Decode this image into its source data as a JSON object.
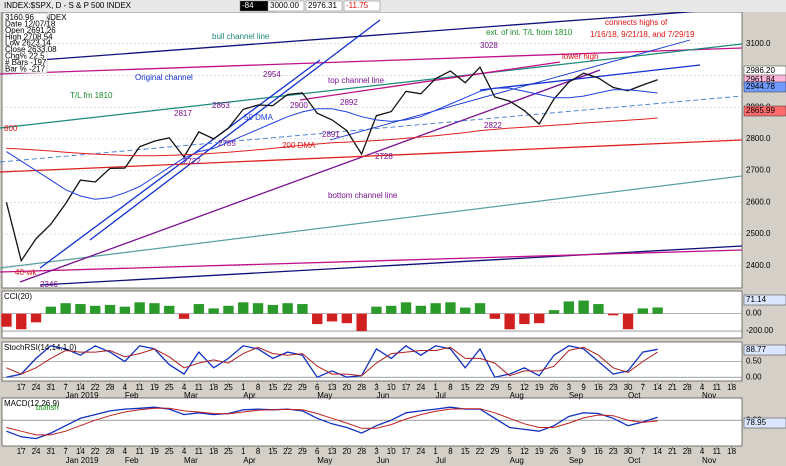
{
  "header": {
    "symbol": "INDEX:$SPX, D - S & P 500 INDEX",
    "change_box": "-84",
    "level": "3000.00",
    "last": "2976.31",
    "change": "-11.75"
  },
  "info_box": [
    "3160.96",
    "Date 12/07/18",
    "Open 2691.26",
    "High 2708.54",
    "Low 2623.14",
    "Close 2633.08",
    "Chg% 22.5",
    "# Bars -197",
    "Bar % -217"
  ],
  "annotations": [
    "bull channel line",
    "ext. of int. T/L from 1810",
    "connects highs of",
    "1/16/18, 9/21/18, and 7/29/19",
    "Original channel",
    "T/L fm 1810",
    "top channel line",
    "bottom channel line",
    "lower high",
    "2954",
    "3028",
    "2900",
    "2892",
    "2891",
    "2817",
    "2863",
    "2785",
    "2722",
    "2728",
    "2822",
    "2346",
    "40-wk",
    "800"
  ],
  "chart_data": [
    {
      "type": "line",
      "title": "S & P 500 INDEX",
      "x": [
        -1,
        0,
        1,
        2,
        3,
        4,
        5,
        6,
        7,
        8,
        9,
        10,
        11,
        12,
        13,
        14,
        15,
        16,
        17,
        18,
        19,
        20,
        21,
        22,
        23,
        24,
        25,
        26,
        27,
        28,
        29,
        30,
        31,
        32,
        33,
        34,
        35,
        36,
        37,
        38,
        39,
        40,
        41,
        42,
        43
      ],
      "xlim": [
        -1.3,
        48.7
      ],
      "xticks": [
        {
          "value": 0,
          "label": "17"
        },
        {
          "value": 1,
          "label": "24"
        },
        {
          "value": 2,
          "label": "31"
        },
        {
          "value": 3,
          "label": "7"
        },
        {
          "value": 4,
          "label": "14"
        },
        {
          "value": 5,
          "label": "22"
        },
        {
          "value": 6,
          "label": "28"
        },
        {
          "value": 7,
          "label": "4"
        },
        {
          "value": 8,
          "label": "11"
        },
        {
          "value": 9,
          "label": "19"
        },
        {
          "value": 10,
          "label": "25"
        },
        {
          "value": 11,
          "label": "4"
        },
        {
          "value": 12,
          "label": "11"
        },
        {
          "value": 13,
          "label": "18"
        },
        {
          "value": 14,
          "label": "25"
        },
        {
          "value": 15,
          "label": "1"
        },
        {
          "value": 16,
          "label": "8"
        },
        {
          "value": 17,
          "label": "15"
        },
        {
          "value": 18,
          "label": "22"
        },
        {
          "value": 19,
          "label": "29"
        },
        {
          "value": 20,
          "label": "6"
        },
        {
          "value": 21,
          "label": "13"
        },
        {
          "value": 22,
          "label": "20"
        },
        {
          "value": 23,
          "label": "28"
        },
        {
          "value": 24,
          "label": "3"
        },
        {
          "value": 25,
          "label": "10"
        },
        {
          "value": 26,
          "label": "17"
        },
        {
          "value": 27,
          "label": "24"
        },
        {
          "value": 28,
          "label": "1"
        },
        {
          "value": 29,
          "label": "8"
        },
        {
          "value": 30,
          "label": "15"
        },
        {
          "value": 31,
          "label": "22"
        },
        {
          "value": 32,
          "label": "29"
        },
        {
          "value": 33,
          "label": "5"
        },
        {
          "value": 34,
          "label": "12"
        },
        {
          "value": 35,
          "label": "19"
        },
        {
          "value": 36,
          "label": "26"
        },
        {
          "value": 37,
          "label": "3"
        },
        {
          "value": 38,
          "label": "9"
        },
        {
          "value": 39,
          "label": "16"
        },
        {
          "value": 40,
          "label": "23"
        },
        {
          "value": 41,
          "label": "30"
        },
        {
          "value": 42,
          "label": "7"
        },
        {
          "value": 43,
          "label": "14"
        },
        {
          "value": 44,
          "label": "21"
        },
        {
          "value": 45,
          "label": "28"
        },
        {
          "value": 46,
          "label": "4"
        },
        {
          "value": 47,
          "label": "11"
        },
        {
          "value": 48,
          "label": "18"
        }
      ],
      "month_ticks": [
        {
          "value": 3,
          "label": "Jan 2019"
        },
        {
          "value": 7,
          "label": "Feb"
        },
        {
          "value": 11,
          "label": "Mar"
        },
        {
          "value": 15,
          "label": "Apr"
        },
        {
          "value": 20,
          "label": "May"
        },
        {
          "value": 24,
          "label": "Jun"
        },
        {
          "value": 28,
          "label": "Jul"
        },
        {
          "value": 33,
          "label": "Aug"
        },
        {
          "value": 37,
          "label": "Sep"
        },
        {
          "value": 41,
          "label": "Oct"
        },
        {
          "value": 46,
          "label": "Nov"
        }
      ],
      "ylim": [
        2330,
        3200
      ],
      "yticks": [
        {
          "value": 2400,
          "label": "2400.0"
        },
        {
          "value": 2500,
          "label": "2500.0"
        },
        {
          "value": 2600,
          "label": "2600.0"
        },
        {
          "value": 2700,
          "label": "2700.0"
        },
        {
          "value": 2800,
          "label": "2800.0"
        },
        {
          "value": 2900,
          "label": "2900.0"
        },
        {
          "value": 3000,
          "label": "3000.0"
        },
        {
          "value": 3100,
          "label": "3100.0"
        }
      ],
      "grid": true,
      "price_labels": [
        "2986.20",
        "2961.84",
        "2944.78",
        "2865.99"
      ],
      "series": [
        {
          "name": "SPX",
          "color": "#111111",
          "values": [
            2600,
            2416,
            2485,
            2531,
            2596,
            2670,
            2664,
            2707,
            2708,
            2775,
            2793,
            2803,
            2743,
            2822,
            2800,
            2834,
            2893,
            2907,
            2905,
            2940,
            2945,
            2881,
            2860,
            2826,
            2752,
            2873,
            2886,
            2950,
            2942,
            2990,
            3014,
            2977,
            3026,
            2932,
            2919,
            2889,
            2847,
            2926,
            2979,
            3007,
            2992,
            2962,
            2952,
            2970,
            2986.2
          ]
        },
        {
          "name": "50 DMA",
          "color": "#2040e0",
          "values": [
            2760,
            2730,
            2700,
            2670,
            2640,
            2620,
            2610,
            2615,
            2630,
            2650,
            2680,
            2710,
            2740,
            2760,
            2770,
            2790,
            2810,
            2830,
            2850,
            2870,
            2885,
            2895,
            2895,
            2885,
            2870,
            2860,
            2855,
            2860,
            2870,
            2890,
            2910,
            2930,
            2950,
            2960,
            2960,
            2950,
            2940,
            2930,
            2930,
            2935,
            2945,
            2955,
            2955,
            2950,
            2944.78
          ]
        },
        {
          "name": "200 DMA",
          "color": "#e02020",
          "values": [
            2770,
            2768,
            2765,
            2762,
            2758,
            2755,
            2752,
            2750,
            2748,
            2747,
            2747,
            2748,
            2750,
            2752,
            2755,
            2758,
            2762,
            2766,
            2770,
            2775,
            2780,
            2784,
            2788,
            2790,
            2792,
            2795,
            2798,
            2802,
            2806,
            2810,
            2815,
            2820,
            2826,
            2830,
            2834,
            2837,
            2840,
            2843,
            2846,
            2850,
            2853,
            2856,
            2859,
            2862,
            2865.99
          ]
        }
      ]
    },
    {
      "type": "bar",
      "title": "CCI(20)",
      "current": "71.14",
      "up_color": "#2a9a2a",
      "down_color": "#d02020",
      "ylim": [
        -280,
        260
      ],
      "yticks": [
        {
          "value": 0,
          "label": "0.00"
        },
        {
          "value": -200,
          "label": "-200.00"
        }
      ],
      "values": [
        -150,
        -180,
        -100,
        80,
        120,
        110,
        90,
        100,
        80,
        130,
        120,
        90,
        -60,
        110,
        60,
        90,
        130,
        120,
        100,
        120,
        110,
        -120,
        -90,
        -110,
        -200,
        80,
        90,
        130,
        90,
        120,
        130,
        70,
        120,
        -60,
        -180,
        -120,
        -110,
        40,
        140,
        150,
        110,
        -20,
        -180,
        60,
        71.14
      ]
    },
    {
      "type": "line",
      "title": "StochRSI(14,14,1,0)",
      "current": "88.77",
      "ylim": [
        -0.12,
        1.12
      ],
      "yticks": [
        {
          "value": 0.5,
          "label": "0.50"
        },
        {
          "value": 0,
          "label": "0.00"
        }
      ],
      "series": [
        {
          "color": "#1030c0",
          "values": [
            0,
            0.1,
            0.6,
            1,
            0.9,
            0.7,
            1,
            0.8,
            0.5,
            1,
            0.9,
            0.4,
            0.1,
            0.8,
            0.3,
            0.6,
            1,
            0.9,
            0.6,
            0.8,
            0.7,
            0,
            0.2,
            0,
            0.05,
            0.9,
            0.6,
            1,
            0.7,
            1,
            0.9,
            0.3,
            0.9,
            0,
            0.1,
            0.3,
            0.05,
            0.7,
            1,
            0.9,
            0.5,
            0.1,
            0.2,
            0.8,
            0.8877
          ]
        },
        {
          "color": "#b02020",
          "values": [
            0.3,
            0.1,
            0.3,
            0.6,
            0.85,
            0.8,
            0.8,
            0.85,
            0.65,
            0.75,
            0.9,
            0.65,
            0.3,
            0.45,
            0.55,
            0.45,
            0.75,
            0.95,
            0.75,
            0.7,
            0.75,
            0.35,
            0.1,
            0.1,
            0.05,
            0.45,
            0.75,
            0.8,
            0.85,
            0.85,
            0.95,
            0.6,
            0.6,
            0.45,
            0.05,
            0.2,
            0.2,
            0.35,
            0.85,
            0.95,
            0.7,
            0.3,
            0.15,
            0.5,
            0.8
          ]
        }
      ]
    },
    {
      "type": "line",
      "title": "MACD(12,26,9)",
      "current": "78.95",
      "note": "bullish",
      "ylim": [
        -70,
        60
      ],
      "yticks": [
        {
          "value": 0,
          "label": "0.00"
        }
      ],
      "series": [
        {
          "color": "#1030c0",
          "values": [
            -30,
            -45,
            -50,
            -35,
            -15,
            5,
            15,
            25,
            30,
            32,
            35,
            30,
            15,
            20,
            15,
            18,
            28,
            30,
            28,
            30,
            25,
            5,
            -10,
            -20,
            -35,
            -15,
            0,
            20,
            25,
            30,
            35,
            30,
            30,
            5,
            -20,
            -25,
            -30,
            -15,
            10,
            20,
            18,
            5,
            -15,
            -5,
            8
          ]
        },
        {
          "color": "#c02020",
          "values": [
            -20,
            -30,
            -40,
            -40,
            -30,
            -15,
            0,
            12,
            22,
            28,
            32,
            32,
            25,
            22,
            18,
            17,
            22,
            27,
            28,
            29,
            28,
            18,
            5,
            -8,
            -22,
            -22,
            -12,
            3,
            15,
            24,
            30,
            31,
            31,
            20,
            5,
            -10,
            -20,
            -20,
            -8,
            6,
            14,
            12,
            0,
            -6,
            -2
          ]
        }
      ]
    }
  ]
}
